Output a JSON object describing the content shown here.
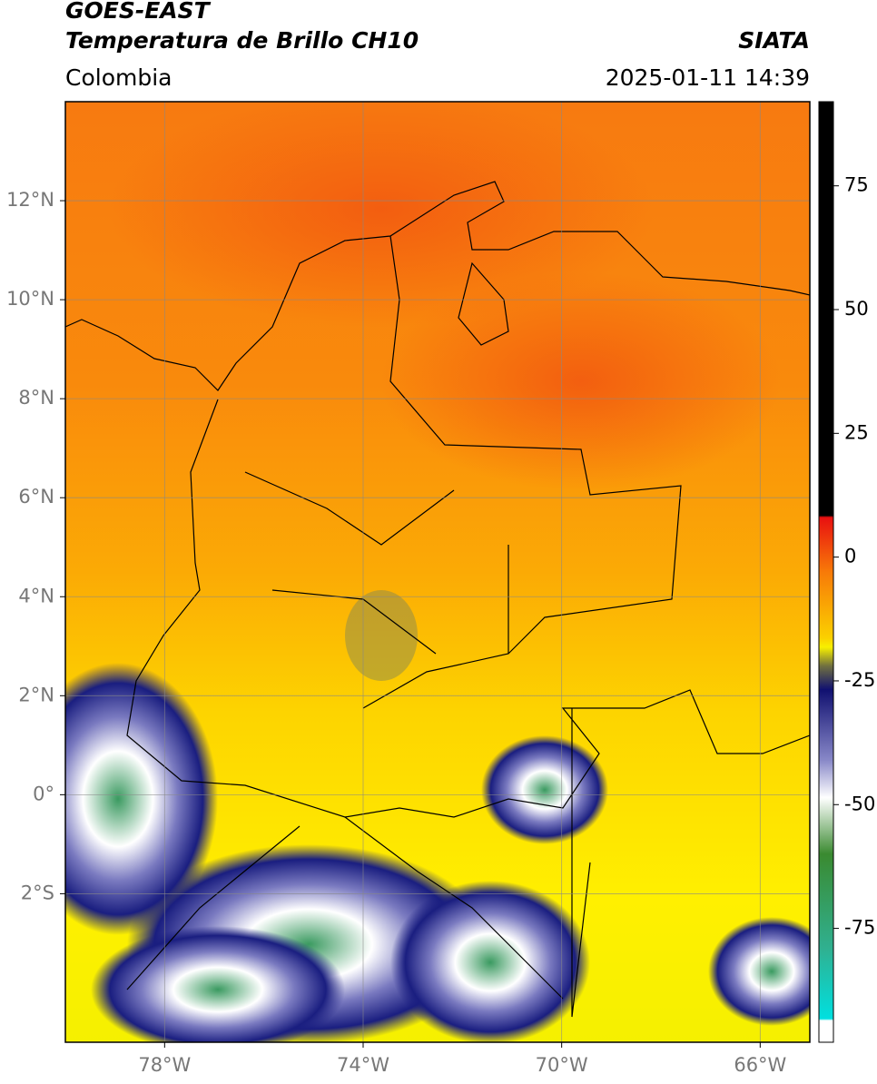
{
  "chart_data": {
    "type": "map",
    "title": "GOES-EAST",
    "subtitle": "Temperatura de Brillo CH10",
    "source": "SIATA",
    "region": "Colombia",
    "timestamp": "2025-01-11 14:39",
    "xlim": [
      -80,
      -65
    ],
    "xticks": [
      {
        "value": -78,
        "label": "78°W"
      },
      {
        "value": -74,
        "label": "74°W"
      },
      {
        "value": -70,
        "label": "70°W"
      },
      {
        "value": -66,
        "label": "66°W"
      }
    ],
    "ylim": [
      -5,
      14
    ],
    "yticks": [
      {
        "value": 12,
        "label": "12°N"
      },
      {
        "value": 10,
        "label": "10°N"
      },
      {
        "value": 8,
        "label": "8°N"
      },
      {
        "value": 6,
        "label": "6°N"
      },
      {
        "value": 4,
        "label": "4°N"
      },
      {
        "value": 2,
        "label": "2°N"
      },
      {
        "value": 0,
        "label": "0°"
      },
      {
        "value": -2,
        "label": "2°S"
      }
    ],
    "clim": [
      -98,
      92
    ],
    "cticks": [
      75,
      50,
      25,
      0,
      -25,
      -50,
      -75
    ],
    "grid": true
  }
}
